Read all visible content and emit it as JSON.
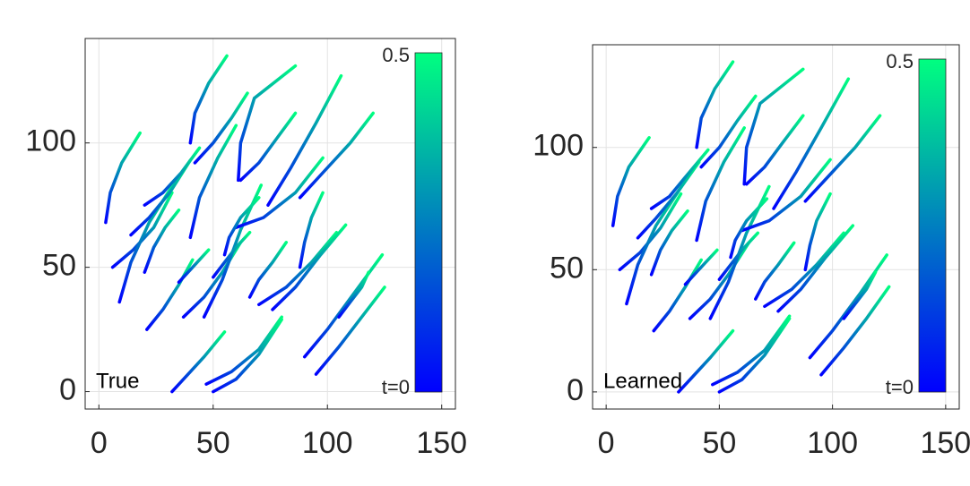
{
  "chart_data": [
    {
      "type": "trajectory",
      "annotation": "True",
      "xlim": [
        -6,
        156
      ],
      "ylim": [
        -7,
        142
      ],
      "xticks": [
        0,
        50,
        100,
        150
      ],
      "yticks": [
        0,
        50,
        100
      ],
      "grid": true,
      "colorbar": {
        "lim": [
          0,
          0.5
        ],
        "ticks": [
          {
            "value": 0,
            "label": "t=0"
          },
          0.5
        ],
        "colors": [
          "#0000ff",
          "#00ff80"
        ]
      },
      "trajectories": [
        {
          "x": [
            3,
            5,
            10,
            18
          ],
          "y": [
            68,
            80,
            92,
            104
          ]
        },
        {
          "x": [
            6,
            15,
            24,
            32
          ],
          "y": [
            50,
            57,
            66,
            80
          ]
        },
        {
          "x": [
            9,
            14,
            22,
            33
          ],
          "y": [
            36,
            52,
            68,
            84
          ]
        },
        {
          "x": [
            14,
            22,
            31,
            40
          ],
          "y": [
            63,
            70,
            80,
            93
          ]
        },
        {
          "x": [
            21,
            28,
            35,
            41
          ],
          "y": [
            25,
            33,
            43,
            53
          ]
        },
        {
          "x": [
            20,
            24,
            29,
            35
          ],
          "y": [
            48,
            58,
            66,
            73
          ]
        },
        {
          "x": [
            20,
            28,
            36,
            44
          ],
          "y": [
            75,
            80,
            88,
            98
          ]
        },
        {
          "x": [
            40,
            42,
            48,
            56
          ],
          "y": [
            100,
            112,
            124,
            135
          ]
        },
        {
          "x": [
            42,
            50,
            58,
            65
          ],
          "y": [
            92,
            100,
            110,
            120
          ]
        },
        {
          "x": [
            40,
            44,
            52,
            60
          ],
          "y": [
            62,
            78,
            94,
            107
          ]
        },
        {
          "x": [
            35,
            40,
            44,
            48
          ],
          "y": [
            44,
            49,
            53,
            57
          ]
        },
        {
          "x": [
            37,
            46,
            54,
            62
          ],
          "y": [
            30,
            38,
            48,
            60
          ]
        },
        {
          "x": [
            46,
            54,
            62,
            71
          ],
          "y": [
            30,
            45,
            65,
            83
          ]
        },
        {
          "x": [
            61,
            62,
            68,
            86
          ],
          "y": [
            85,
            100,
            118,
            131
          ]
        },
        {
          "x": [
            62,
            70,
            78,
            86
          ],
          "y": [
            85,
            92,
            102,
            112
          ]
        },
        {
          "x": [
            60,
            72,
            86,
            98
          ],
          "y": [
            66,
            70,
            80,
            94
          ]
        },
        {
          "x": [
            74,
            84,
            95,
            106
          ],
          "y": [
            75,
            90,
            108,
            127
          ]
        },
        {
          "x": [
            88,
            98,
            110,
            120
          ],
          "y": [
            78,
            88,
            100,
            112
          ]
        },
        {
          "x": [
            70,
            82,
            93,
            104
          ],
          "y": [
            35,
            42,
            52,
            64
          ]
        },
        {
          "x": [
            76,
            86,
            97,
            108
          ],
          "y": [
            33,
            42,
            55,
            67
          ]
        },
        {
          "x": [
            88,
            90,
            93,
            98
          ],
          "y": [
            50,
            60,
            70,
            80
          ]
        },
        {
          "x": [
            90,
            100,
            112,
            124
          ],
          "y": [
            14,
            25,
            40,
            55
          ]
        },
        {
          "x": [
            95,
            105,
            115,
            125
          ],
          "y": [
            7,
            18,
            30,
            42
          ]
        },
        {
          "x": [
            32,
            38,
            46,
            55
          ],
          "y": [
            0,
            6,
            14,
            24
          ]
        },
        {
          "x": [
            47,
            58,
            70,
            80
          ],
          "y": [
            3,
            8,
            17,
            30
          ]
        },
        {
          "x": [
            50,
            60,
            70,
            80
          ],
          "y": [
            0,
            5,
            15,
            29
          ]
        },
        {
          "x": [
            55,
            57,
            62,
            70
          ],
          "y": [
            55,
            62,
            70,
            78
          ]
        },
        {
          "x": [
            66,
            70,
            76,
            82
          ],
          "y": [
            38,
            45,
            52,
            60
          ]
        },
        {
          "x": [
            50,
            55,
            60,
            66
          ],
          "y": [
            46,
            52,
            58,
            64
          ]
        },
        {
          "x": [
            105,
            110,
            115,
            118
          ],
          "y": [
            30,
            36,
            42,
            48
          ]
        }
      ]
    },
    {
      "type": "trajectory",
      "annotation": "Learned",
      "xlim": [
        -6,
        156
      ],
      "ylim": [
        -7,
        142
      ],
      "xticks": [
        0,
        50,
        100,
        150
      ],
      "yticks": [
        0,
        50,
        100
      ],
      "grid": true,
      "colorbar": {
        "lim": [
          0,
          0.5
        ],
        "ticks": [
          {
            "value": 0,
            "label": "t=0"
          },
          0.5
        ],
        "colors": [
          "#0000ff",
          "#00ff80"
        ]
      },
      "trajectories": [
        {
          "x": [
            3,
            5,
            10,
            19
          ],
          "y": [
            68,
            80,
            92,
            104
          ]
        },
        {
          "x": [
            6,
            15,
            24,
            33
          ],
          "y": [
            50,
            57,
            67,
            81
          ]
        },
        {
          "x": [
            9,
            14,
            22,
            34
          ],
          "y": [
            36,
            52,
            68,
            85
          ]
        },
        {
          "x": [
            14,
            22,
            31,
            41
          ],
          "y": [
            63,
            71,
            81,
            94
          ]
        },
        {
          "x": [
            21,
            28,
            35,
            42
          ],
          "y": [
            25,
            33,
            43,
            54
          ]
        },
        {
          "x": [
            20,
            24,
            29,
            36
          ],
          "y": [
            48,
            58,
            66,
            74
          ]
        },
        {
          "x": [
            20,
            28,
            36,
            45
          ],
          "y": [
            75,
            80,
            89,
            99
          ]
        },
        {
          "x": [
            40,
            42,
            48,
            56
          ],
          "y": [
            100,
            112,
            124,
            135
          ]
        },
        {
          "x": [
            42,
            50,
            58,
            66
          ],
          "y": [
            92,
            100,
            111,
            121
          ]
        },
        {
          "x": [
            40,
            44,
            52,
            61
          ],
          "y": [
            62,
            78,
            94,
            108
          ]
        },
        {
          "x": [
            35,
            40,
            44,
            49
          ],
          "y": [
            44,
            49,
            53,
            58
          ]
        },
        {
          "x": [
            37,
            46,
            54,
            63
          ],
          "y": [
            30,
            38,
            48,
            61
          ]
        },
        {
          "x": [
            46,
            54,
            62,
            72
          ],
          "y": [
            30,
            45,
            65,
            84
          ]
        },
        {
          "x": [
            61,
            62,
            68,
            87
          ],
          "y": [
            85,
            100,
            118,
            132
          ]
        },
        {
          "x": [
            62,
            70,
            78,
            87
          ],
          "y": [
            85,
            92,
            102,
            113
          ]
        },
        {
          "x": [
            60,
            72,
            86,
            99
          ],
          "y": [
            66,
            70,
            80,
            95
          ]
        },
        {
          "x": [
            74,
            84,
            95,
            107
          ],
          "y": [
            75,
            90,
            108,
            128
          ]
        },
        {
          "x": [
            88,
            98,
            110,
            121
          ],
          "y": [
            78,
            88,
            100,
            113
          ]
        },
        {
          "x": [
            70,
            82,
            93,
            105
          ],
          "y": [
            35,
            42,
            52,
            65
          ]
        },
        {
          "x": [
            76,
            86,
            97,
            109
          ],
          "y": [
            33,
            42,
            55,
            68
          ]
        },
        {
          "x": [
            88,
            90,
            93,
            99
          ],
          "y": [
            50,
            60,
            70,
            81
          ]
        },
        {
          "x": [
            90,
            100,
            112,
            124
          ],
          "y": [
            14,
            25,
            40,
            56
          ]
        },
        {
          "x": [
            95,
            105,
            115,
            125
          ],
          "y": [
            7,
            18,
            30,
            43
          ]
        },
        {
          "x": [
            32,
            38,
            46,
            56
          ],
          "y": [
            0,
            6,
            14,
            25
          ]
        },
        {
          "x": [
            47,
            58,
            70,
            81
          ],
          "y": [
            3,
            8,
            17,
            31
          ]
        },
        {
          "x": [
            50,
            60,
            70,
            81
          ],
          "y": [
            0,
            5,
            15,
            30
          ]
        },
        {
          "x": [
            55,
            57,
            62,
            71
          ],
          "y": [
            55,
            62,
            70,
            79
          ]
        },
        {
          "x": [
            66,
            70,
            76,
            83
          ],
          "y": [
            38,
            45,
            52,
            61
          ]
        },
        {
          "x": [
            50,
            55,
            60,
            67
          ],
          "y": [
            46,
            52,
            58,
            65
          ]
        },
        {
          "x": [
            105,
            110,
            115,
            119
          ],
          "y": [
            30,
            36,
            42,
            49
          ]
        }
      ]
    }
  ]
}
